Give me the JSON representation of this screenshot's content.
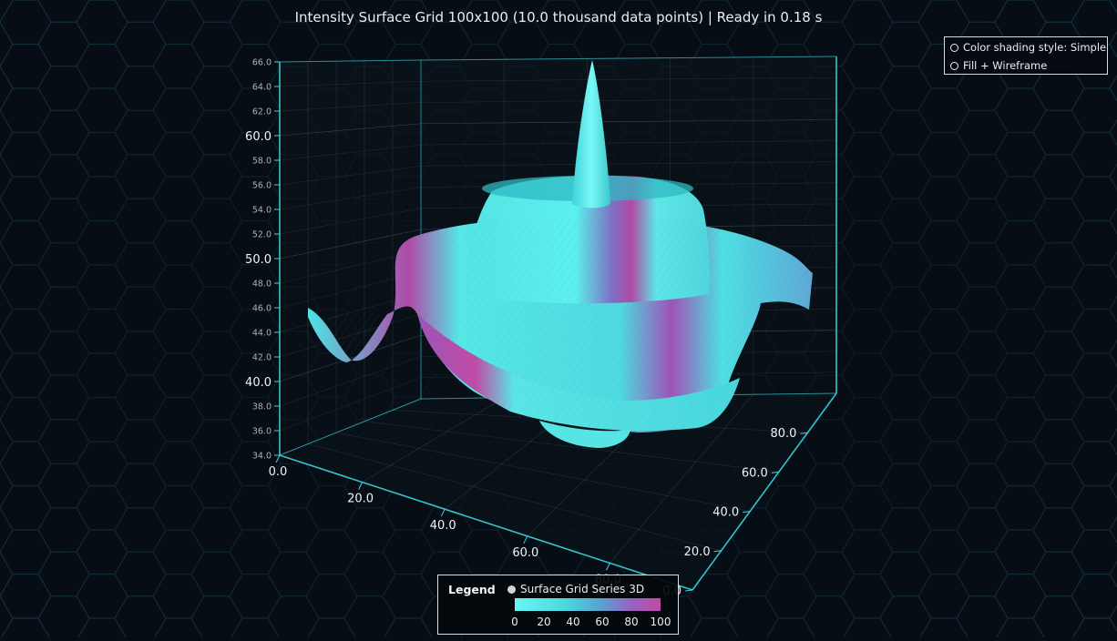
{
  "header": {
    "title": "Intensity Surface Grid 100x100 (10.0 thousand data points) | Ready in 0.18 s"
  },
  "options": [
    {
      "label": "Color shading style: Simple"
    },
    {
      "label": "Fill + Wireframe"
    }
  ],
  "legend": {
    "title": "Legend",
    "series_name": "Surface Grid Series 3D",
    "ticks": [
      "0",
      "20",
      "40",
      "60",
      "80",
      "100"
    ]
  },
  "colors": {
    "background": "#070d14",
    "axis": "#3ad6e0",
    "surface_low": "#66f7f4",
    "surface_high": "#c04aa6"
  },
  "chart_data": {
    "type": "surface3d",
    "title": "Intensity Surface Grid 100x100 (10.0 thousand data points) | Ready in 0.18 s",
    "grid_size": [
      100,
      100
    ],
    "y_axis": {
      "range": [
        34,
        66
      ],
      "major_ticks": [
        "40.0",
        "50.0",
        "60.0"
      ],
      "minor_ticks": [
        "34.0",
        "36.0",
        "38.0",
        "42.0",
        "44.0",
        "46.0",
        "48.0",
        "52.0",
        "54.0",
        "56.0",
        "58.0",
        "62.0",
        "64.0",
        "66.0"
      ]
    },
    "x_axis": {
      "range": [
        0,
        100
      ],
      "ticks": [
        "0.0",
        "20.0",
        "40.0",
        "60.0",
        "80.0"
      ]
    },
    "z_axis": {
      "range": [
        0,
        100
      ],
      "ticks": [
        "0.0",
        "20.0",
        "40.0",
        "60.0",
        "80.0"
      ]
    },
    "intensity_range": [
      0,
      100
    ],
    "legend_placement": "bottom-center"
  }
}
